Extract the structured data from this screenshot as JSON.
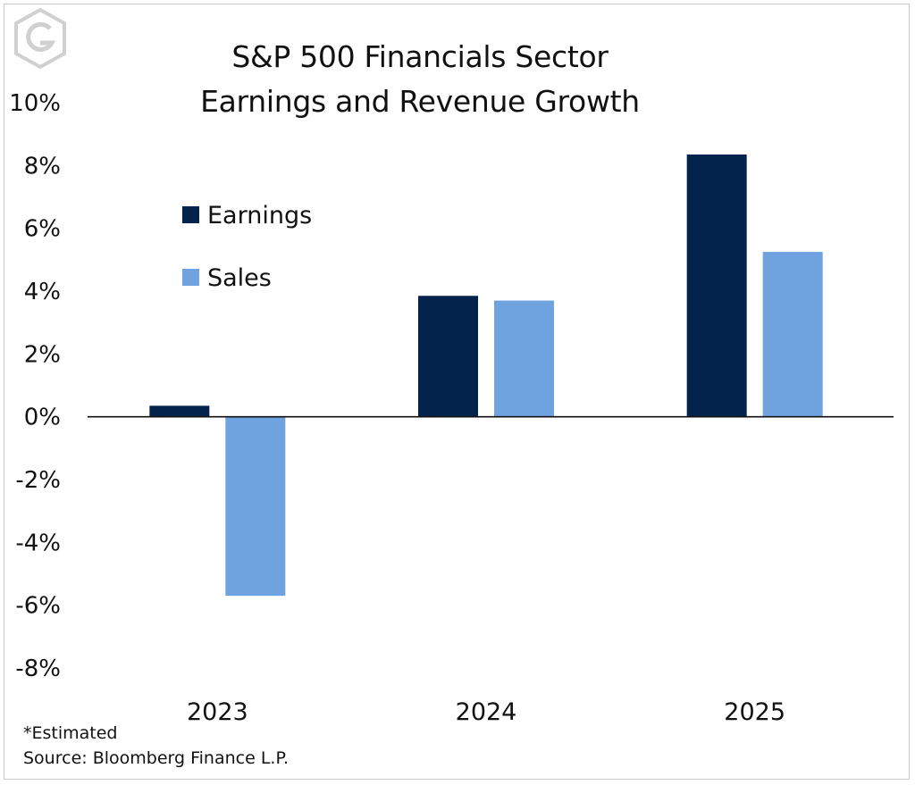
{
  "title_lines": [
    "S&P 500 Financials Sector",
    "Earnings and Revenue Growth"
  ],
  "logo_icon": "hexagon-g-logo",
  "footnote": "*Estimated",
  "source": "Source: Bloomberg Finance L.P.",
  "colors": {
    "earnings": "#03224c",
    "sales": "#6fa3e0",
    "axis": "#111111",
    "logo": "#d0d0d0"
  },
  "chart_data": {
    "type": "bar",
    "title": "S&P 500 Financials Sector Earnings and Revenue Growth",
    "xlabel": "",
    "ylabel": "",
    "categories": [
      "2023",
      "2024",
      "2025"
    ],
    "series": [
      {
        "name": "Earnings",
        "values": [
          0.35,
          3.85,
          8.35
        ]
      },
      {
        "name": "Sales",
        "values": [
          -5.7,
          3.7,
          5.25
        ]
      }
    ],
    "ylim": [
      -8,
      10
    ],
    "yticks": [
      10,
      8,
      6,
      4,
      2,
      0,
      -2,
      -4,
      -6,
      -8
    ],
    "ytick_labels": [
      "10%",
      "8%",
      "6%",
      "4%",
      "2%",
      "0%",
      "-2%",
      "-4%",
      "-6%",
      "-8%"
    ],
    "grid": false,
    "legend_position": "upper-left inside plot"
  }
}
